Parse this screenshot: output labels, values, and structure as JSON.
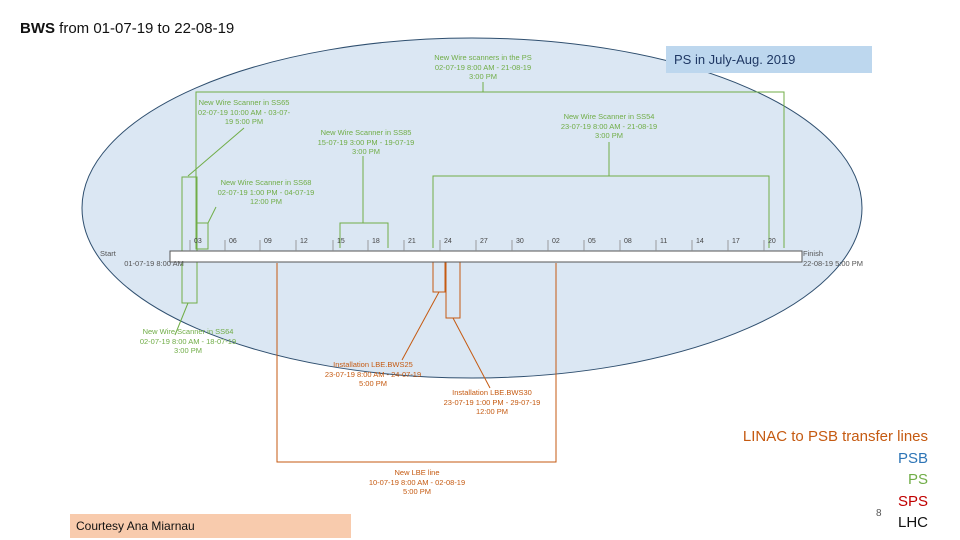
{
  "title": {
    "bold": "BWS",
    "rest": " from 01-07-19 to 22-08-19"
  },
  "ps_header": "PS in July-Aug. 2019",
  "courtesy": "Courtesy Ana Miarnau",
  "page_number": "8",
  "legend": [
    "LINAC to PSB transfer lines",
    "PSB",
    "PS",
    "SPS",
    "LHC"
  ],
  "colors": {
    "lhc_ellipse": "#dbe7f3",
    "ps": "#70ad47",
    "linac": "#c55a11",
    "timeline": "#555555"
  },
  "timeline": {
    "start": [
      "Start",
      "01-07-19 8:00 AM"
    ],
    "finish": [
      "Finish",
      "22-08-19 5:00 PM"
    ],
    "ticks": [
      "03",
      "06",
      "09",
      "12",
      "15",
      "18",
      "21",
      "24",
      "27",
      "30",
      "02",
      "05",
      "08",
      "11",
      "14",
      "17",
      "20"
    ]
  },
  "tasks": {
    "ps_scanners": [
      "New Wire scanners in the PS",
      "02-07-19 8:00 AM - 21-08-19",
      "3:00 PM"
    ],
    "ss65": [
      "New Wire Scanner in SS65",
      "02-07-19 10:00 AM - 03-07-",
      "19 5:00 PM"
    ],
    "ss85": [
      "New Wire Scanner in SS85",
      "15-07-19 3:00 PM - 19-07-19",
      "3:00 PM"
    ],
    "ss54_top": [
      "New Wire Scanner in SS54",
      "23-07-19 8:00 AM - 21-08-19",
      "3:00 PM"
    ],
    "ss68": [
      "New Wire Scanner in SS68",
      "02-07-19 1:00 PM - 04-07-19",
      "12:00 PM"
    ],
    "ss64": [
      "New Wire Scanner in SS64",
      "02-07-19 8:00 AM - 18-07-19",
      "3:00 PM"
    ],
    "bws25": [
      "Installation LBE.BWS25",
      "23-07-19 8:00 AM - 24-07-19",
      "5:00 PM"
    ],
    "bws30": [
      "Installation LBE.BWS30",
      "23-07-19 1:00 PM - 29-07-19",
      "12:00 PM"
    ],
    "lbe": [
      "New LBE line",
      "10-07-19 8:00 AM - 02-08-19",
      "5:00 PM"
    ]
  }
}
